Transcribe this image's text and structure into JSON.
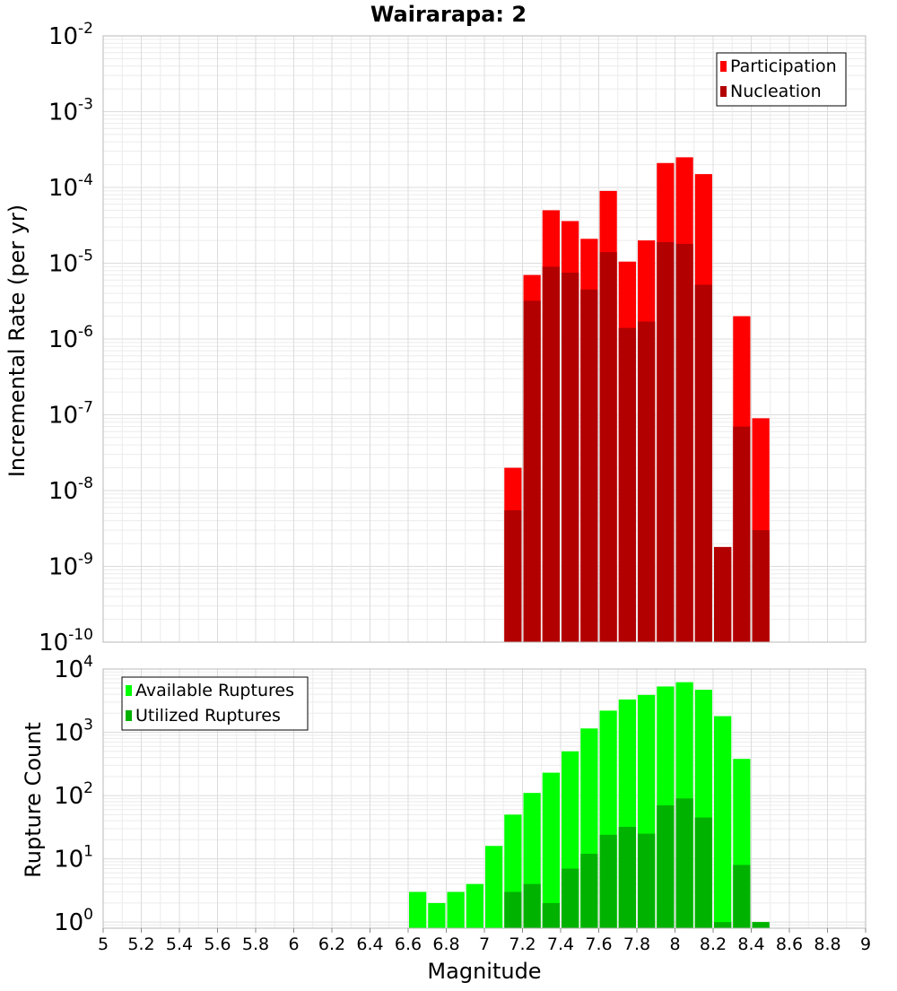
{
  "chart_data": [
    {
      "type": "bar",
      "title": "Wairarapa: 2",
      "ylabel": "Incremental Rate (per yr)",
      "xlabel": "",
      "yscale": "log",
      "ylim": [
        1e-10,
        0.01
      ],
      "xlim": [
        5,
        9
      ],
      "grid": true,
      "legend_position": "top-right",
      "x": [
        7.15,
        7.25,
        7.35,
        7.45,
        7.55,
        7.65,
        7.75,
        7.85,
        7.95,
        8.05,
        8.15,
        8.25,
        8.35,
        8.45
      ],
      "series": [
        {
          "name": "Participation",
          "color": "#ff0000",
          "values": [
            2e-08,
            7e-06,
            5e-05,
            3.6e-05,
            2.1e-05,
            9e-05,
            1.05e-05,
            2e-05,
            0.00021,
            0.00025,
            0.00015,
            1.8e-09,
            2e-06,
            9e-08
          ]
        },
        {
          "name": "Nucleation",
          "color": "#b20000",
          "values": [
            5.5e-09,
            3.2e-06,
            9e-06,
            7.5e-06,
            4.5e-06,
            1.4e-05,
            1.4e-06,
            1.7e-06,
            1.9e-05,
            1.8e-05,
            5.2e-06,
            1.8e-09,
            7e-08,
            3e-09
          ]
        }
      ],
      "yticks": [
        {
          "base": "10",
          "exp": "-10"
        },
        {
          "base": "10",
          "exp": "-9"
        },
        {
          "base": "10",
          "exp": "-8"
        },
        {
          "base": "10",
          "exp": "-7"
        },
        {
          "base": "10",
          "exp": "-6"
        },
        {
          "base": "10",
          "exp": "-5"
        },
        {
          "base": "10",
          "exp": "-4"
        },
        {
          "base": "10",
          "exp": "-3"
        },
        {
          "base": "10",
          "exp": "-2"
        }
      ]
    },
    {
      "type": "bar",
      "title": "",
      "ylabel": "Rupture Count",
      "xlabel": "Magnitude",
      "yscale": "log",
      "ylim": [
        0.8,
        10000
      ],
      "xlim": [
        5,
        9
      ],
      "grid": true,
      "legend_position": "top-left",
      "x": [
        6.65,
        6.75,
        6.85,
        6.95,
        7.05,
        7.15,
        7.25,
        7.35,
        7.45,
        7.55,
        7.65,
        7.75,
        7.85,
        7.95,
        8.05,
        8.15,
        8.25,
        8.35,
        8.45
      ],
      "series": [
        {
          "name": "Available Ruptures",
          "color": "#00ff00",
          "values": [
            3,
            2,
            3,
            4,
            16,
            50,
            110,
            230,
            500,
            1150,
            2200,
            3300,
            3900,
            5300,
            6200,
            4700,
            1800,
            380,
            1
          ]
        },
        {
          "name": "Utilized Ruptures",
          "color": "#00b200",
          "values": [
            null,
            null,
            null,
            null,
            null,
            3,
            4,
            2,
            7,
            12,
            24,
            32,
            25,
            70,
            90,
            45,
            1,
            8,
            1
          ]
        }
      ],
      "xticks": [
        "5",
        "5.2",
        "5.4",
        "5.6",
        "5.8",
        "6",
        "6.2",
        "6.4",
        "6.6",
        "6.8",
        "7",
        "7.2",
        "7.4",
        "7.6",
        "7.8",
        "8",
        "8.2",
        "8.4",
        "8.6",
        "8.8",
        "9"
      ],
      "yticks": [
        {
          "base": "10",
          "exp": "0"
        },
        {
          "base": "10",
          "exp": "1"
        },
        {
          "base": "10",
          "exp": "2"
        },
        {
          "base": "10",
          "exp": "3"
        },
        {
          "base": "10",
          "exp": "4"
        }
      ]
    }
  ]
}
